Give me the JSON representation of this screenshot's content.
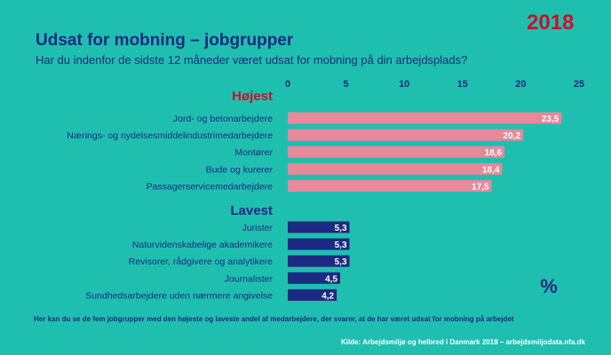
{
  "year": "2018",
  "title": "Udsat for mobning – jobgrupper",
  "subtitle": "Har du indenfor de sidste 12 måneder været udsat for mobning på din arbejdsplads?",
  "footnote": "Her kan du se de fem jobgrupper med den højeste og laveste andel af medarbejdere, der svarer, at de har været udsat for mobning på arbejdet",
  "source": "Kilde: Arbejdsmiljø og helbred i Danmark 2018 – arbejdsmiljodata.nfa.dk",
  "colors": {
    "background": "#1fbfaf",
    "highest_bar": "#e8889a",
    "lowest_bar": "#1d2a82",
    "highest_heading": "#c8102e",
    "lowest_heading": "#1d2a82",
    "text": "#1d2a82",
    "year": "#c8102e"
  },
  "chart_data": {
    "type": "bar",
    "orientation": "horizontal",
    "unit_label": "%",
    "xlim": [
      0,
      25
    ],
    "ticks": [
      "0",
      "5",
      "10",
      "15",
      "20",
      "25"
    ],
    "grid": false,
    "groups": [
      {
        "name": "Højest",
        "categories": [
          "Jord- og betonarbejdere",
          "Nærings- og nydelsesmiddelindustrimedarbejdere",
          "Montører",
          "Bude og kurerer",
          "Passagerservicemedarbejdere"
        ],
        "values": [
          23.5,
          20.2,
          18.6,
          18.4,
          17.5
        ],
        "labels": [
          "23,5",
          "20,2",
          "18,6",
          "18,4",
          "17,5"
        ]
      },
      {
        "name": "Lavest",
        "categories": [
          "Jurister",
          "Naturvidenskabelige akademikere",
          "Revisorer, rådgivere og analytikere",
          "Journalister",
          "Sundhedsarbejdere uden nærmere angivelse"
        ],
        "values": [
          5.3,
          5.3,
          5.3,
          4.5,
          4.2
        ],
        "labels": [
          "5,3",
          "5,3",
          "5,3",
          "4,5",
          "4,2"
        ]
      }
    ]
  }
}
